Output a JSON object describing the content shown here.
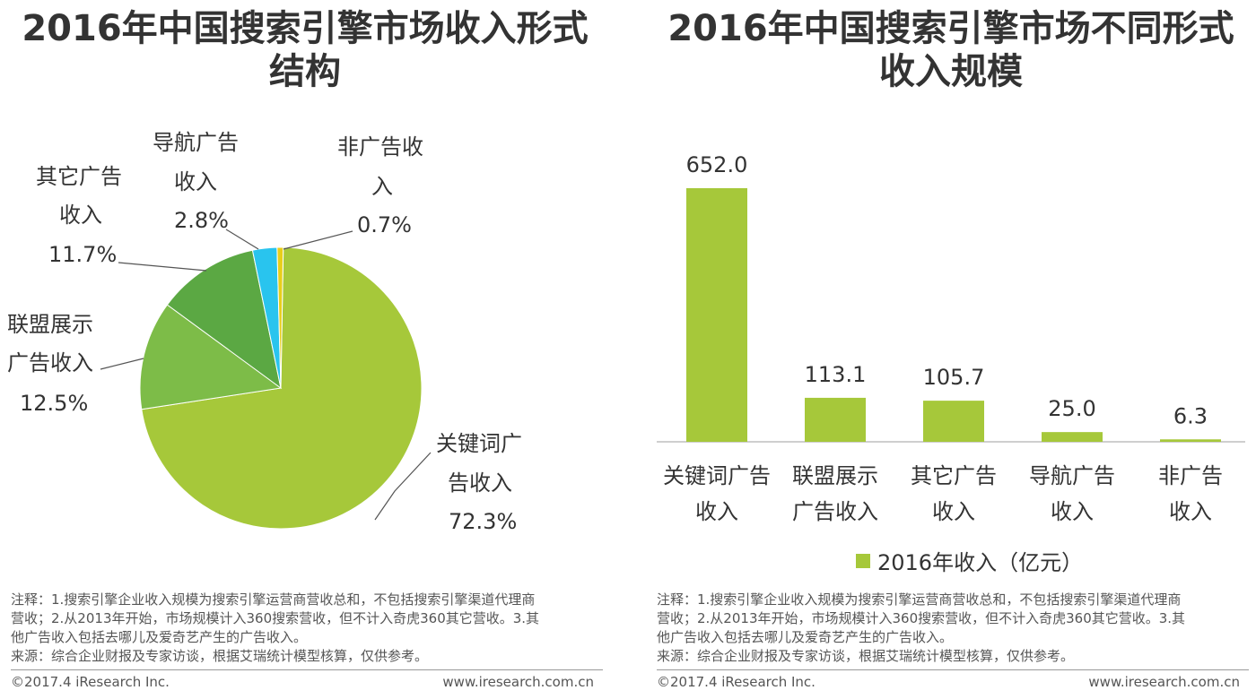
{
  "colors": {
    "keyword": "#A6C83A",
    "alliance": "#7DBC48",
    "other": "#5BA843",
    "nav": "#29C4EE",
    "nonad": "#E8CE1A",
    "bar": "#A6C83A"
  },
  "left": {
    "title_line1": "2016年中国搜索引擎市场收入形式",
    "title_line2": "结构",
    "notes": [
      "注释：1.搜索引擎企业收入规模为搜索引擎运营商营收总和，不包括搜索引擎渠道代理商",
      "营收；2.从2013年开始，市场规模计入360搜索营收，但不计入奇虎360其它营收。3.其",
      "他广告收入包括去哪儿及爱奇艺产生的广告收入。",
      "来源：综合企业财报及专家访谈，根据艾瑞统计模型核算，仅供参考。"
    ],
    "footer_left": "©2017.4 iResearch Inc.",
    "footer_right": "www.iresearch.com.cn"
  },
  "right": {
    "title_line1": "2016年中国搜索引擎市场不同形式",
    "title_line2": "收入规模",
    "legend_label": "2016年收入（亿元）",
    "notes": [
      "注释：1.搜索引擎企业收入规模为搜索引擎运营商营收总和，不包括搜索引擎渠道代理商",
      "营收；2.从2013年开始，市场规模计入360搜索营收，但不计入奇虎360其它营收。3.其",
      "他广告收入包括去哪儿及爱奇艺产生的广告收入。",
      "来源：综合企业财报及专家访谈，根据艾瑞统计模型核算，仅供参考。"
    ],
    "footer_left": "©2017.4 iResearch Inc.",
    "footer_right": "www.iresearch.com.cn"
  },
  "chart_data": [
    {
      "type": "pie",
      "title": "2016年中国搜索引擎市场收入形式结构",
      "slices": [
        {
          "key": "keyword",
          "label_lines": [
            "关键词广",
            "告收入"
          ],
          "value_label": "72.3%",
          "value": 72.3
        },
        {
          "key": "alliance",
          "label_lines": [
            "联盟展示",
            "广告收入"
          ],
          "value_label": "12.5%",
          "value": 12.5
        },
        {
          "key": "other",
          "label_lines": [
            "其它广告",
            "收入"
          ],
          "value_label": "11.7%",
          "value": 11.7
        },
        {
          "key": "nav",
          "label_lines": [
            "导航广告",
            "收入"
          ],
          "value_label": "2.8%",
          "value": 2.8
        },
        {
          "key": "nonad",
          "label_lines": [
            "非广告收",
            "入"
          ],
          "value_label": "0.7%",
          "value": 0.7
        }
      ]
    },
    {
      "type": "bar",
      "title": "2016年中国搜索引擎市场不同形式收入规模",
      "series_name": "2016年收入（亿元）",
      "categories": [
        [
          "关键词广告",
          "收入"
        ],
        [
          "联盟展示",
          "广告收入"
        ],
        [
          "其它广告",
          "收入"
        ],
        [
          "导航广告",
          "收入"
        ],
        [
          "非广告",
          "收入"
        ]
      ],
      "values": [
        652.0,
        113.1,
        105.7,
        25.0,
        6.3
      ],
      "value_labels": [
        "652.0",
        "113.1",
        "105.7",
        "25.0",
        "6.3"
      ],
      "ylim": [
        0,
        652
      ]
    }
  ]
}
